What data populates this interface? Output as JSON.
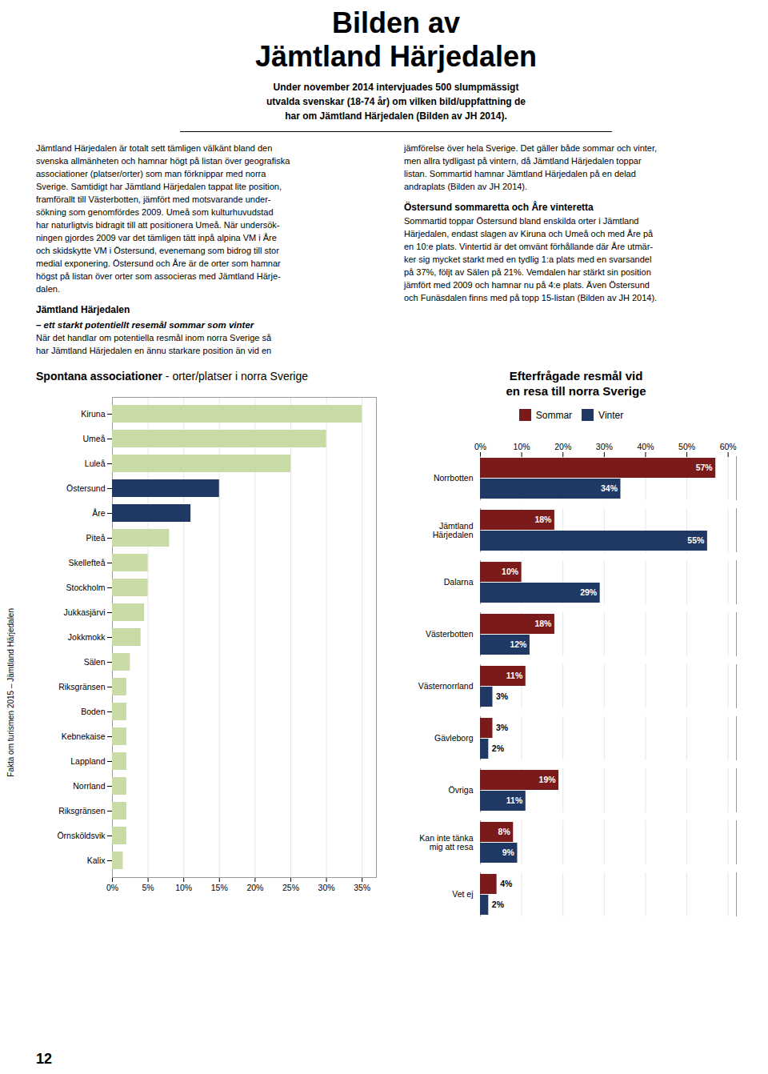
{
  "title": "Bilden av\nJämtland Härjedalen",
  "subtitle": "Under november 2014 intervjuades 500 slumpmässigt\nutvalda svenskar (18-74 år) om vilken bild/uppfattning de\nhar om Jämtland Härjedalen (Bilden av JH 2014).",
  "annotations": [
    "Jämtland Härjedalen är totalt sett tämligen välkänt bland den\nsvenska allmänheten och hamnar högt på listan över geografiska\nassociationer (platser/orter) som man förknippar med norra\nSverige.  Samtidigt har Jämtland Härjedalen tappat lite position,\nframförallt till Västerbotten, jämfört med motsvarande under-\nsökning som genomfördes 2009. Umeå som kulturhuvudstad\nhar naturligtvis bidragit till att positionera Umeå. När undersök-\nningen gjordes 2009 var det tämligen tätt inpå alpina VM i Åre\noch skidskytte VM i Östersund, evenemang som bidrog till stor\nmedial exponering. Östersund och Åre är de orter som hamnar\nhögst på listan över orter som associeras med Jämtland Härje-\ndalen.",
    "Jämtland Härjedalen",
    "– ett starkt potentiellt resemål sommar som vinter",
    "När det handlar om potentiella resmål inom norra Sverige så\nhar Jämtland Härjedalen en ännu starkare position än vid en",
    "jämförelse över hela Sverige. Det gäller både sommar och vinter,\nmen allra tydligast på vintern, då Jämtland Härjedalen toppar\nlistan. Sommartid hamnar Jämtland Härjedalen på en delad\nandraplats (Bilden av JH 2014).",
    "Östersund sommaretta och Åre vinteretta",
    "Sommartid toppar Östersund bland enskilda orter i Jämtland\nHärjedalen, endast slagen av Kiruna och Umeå och med Åre på\nen 10:e plats. Vintertid är det omvänt förhållande där Åre utmär-\nker sig mycket starkt med en tydlig 1:a plats med en svarsandel\npå 37%, följt av Sälen på 21%. Vemdalen har stärkt sin position\njämfört med 2009 och hamnar nu på 4:e plats. Även Östersund\noch Funäsdalen finns med på topp 15-listan (Bilden av JH 2014).",
    "Fakta om turismen 2015 – Jämtland Härjedalen",
    "12"
  ],
  "chart_data": [
    {
      "type": "bar",
      "orientation": "horizontal",
      "title": "Spontana associationer",
      "subtitle": "- orter/platser i norra Sverige",
      "categories": [
        "Kiruna",
        "Umeå",
        "Luleå",
        "Östersund",
        "Åre",
        "Piteå",
        "Skellefteå",
        "Stockholm",
        "Jukkasjärvi",
        "Jokkmokk",
        "Sälen",
        "Riksgränsen",
        "Boden",
        "Kebnekaise",
        "Lappland",
        "Norrland",
        "Riksgränsen",
        "Örnsköldsvik",
        "Kalix"
      ],
      "values": [
        35,
        30,
        25,
        15,
        11,
        8,
        5,
        5,
        4.5,
        4,
        2.5,
        2,
        2,
        2,
        2,
        2,
        2,
        2,
        1.5
      ],
      "colors": [
        "#c8dba4",
        "#c8dba4",
        "#c8dba4",
        "#1f3864",
        "#1f3864",
        "#c8dba4",
        "#c8dba4",
        "#c8dba4",
        "#c8dba4",
        "#c8dba4",
        "#c8dba4",
        "#c8dba4",
        "#c8dba4",
        "#c8dba4",
        "#c8dba4",
        "#c8dba4",
        "#c8dba4",
        "#c8dba4",
        "#c8dba4"
      ],
      "xlim": [
        0,
        37
      ],
      "xticks": [
        {
          "value": 0,
          "label": "0%"
        },
        {
          "value": 5,
          "label": "5%"
        },
        {
          "value": 10,
          "label": "10%"
        },
        {
          "value": 15,
          "label": "15%"
        },
        {
          "value": 20,
          "label": "20%"
        },
        {
          "value": 25,
          "label": "25%"
        },
        {
          "value": 30,
          "label": "30%"
        },
        {
          "value": 35,
          "label": "35%"
        }
      ],
      "grid": true
    },
    {
      "type": "bar",
      "orientation": "horizontal",
      "title": "Efterfrågade resmål vid\nen resa till norra Sverige",
      "categories": [
        "Norrbotten",
        "Jämtland\nHärjedalen",
        "Dalarna",
        "Västerbotten",
        "Västernorrland",
        "Gävleborg",
        "Övriga",
        "Kan inte tänka\nmig att resa",
        "Vet ej"
      ],
      "series": [
        {
          "name": "Sommar",
          "color": "#7b1a1a",
          "values": [
            57,
            18,
            10,
            18,
            11,
            3,
            19,
            8,
            4
          ],
          "value_labels": [
            "57%",
            "18%",
            "10%",
            "18%",
            "11%",
            "3%",
            "19%",
            "8%",
            "4%"
          ]
        },
        {
          "name": "Vinter",
          "color": "#1f3864",
          "values": [
            34,
            55,
            29,
            12,
            3,
            2,
            11,
            9,
            2
          ],
          "value_labels": [
            "34%",
            "55%",
            "29%",
            "12%",
            "3%",
            "2%",
            "11%",
            "9%",
            "2%"
          ]
        }
      ],
      "xlim": [
        0,
        62
      ],
      "xticks": [
        {
          "value": 0,
          "label": "0%"
        },
        {
          "value": 10,
          "label": "10%"
        },
        {
          "value": 20,
          "label": "20%"
        },
        {
          "value": 30,
          "label": "30%"
        },
        {
          "value": 40,
          "label": "40%"
        },
        {
          "value": 50,
          "label": "50%"
        },
        {
          "value": 60,
          "label": "60%"
        }
      ],
      "grid": true,
      "data_labels": true,
      "legend": "top"
    }
  ]
}
